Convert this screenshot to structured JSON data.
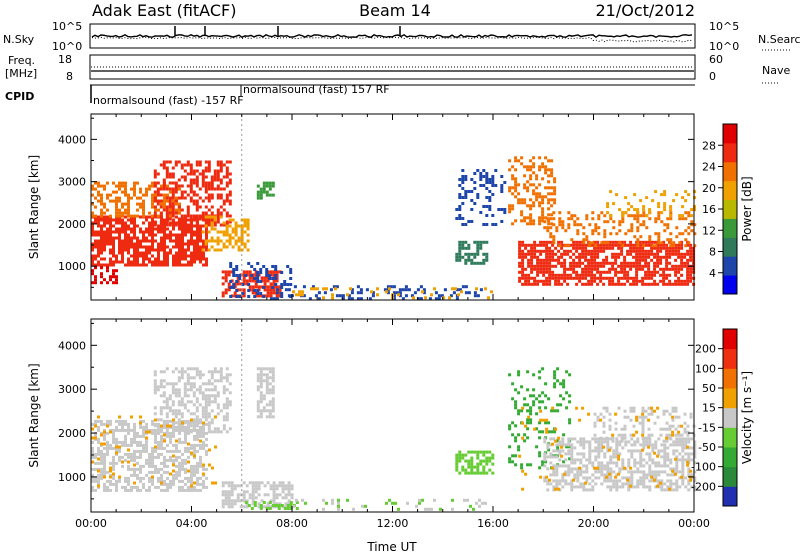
{
  "header": {
    "station": "Adak East (fitACF)",
    "beam": "Beam 14",
    "date": "21/Oct/2012"
  },
  "info_panels": {
    "nsky_label": "N.Sky",
    "nsky_ticks": [
      "10^5",
      "10^0"
    ],
    "nsearch_label": "N.Search",
    "nsearch_ticks": [
      "10^5",
      "10^0"
    ],
    "freq_label_1": "Freq.",
    "freq_label_2": "[MHz]",
    "freq_ticks": [
      "18",
      "8"
    ],
    "nave_label": "Nave",
    "nave_ticks": [
      "60",
      "0"
    ],
    "cpid_label": "CPID",
    "cpid_entries": [
      "normalsound (fast) -157 RF",
      "normalsound (fast) 157 RF"
    ]
  },
  "chart_data": [
    {
      "type": "heatmap",
      "panel": "power",
      "ylabel": "Slant Range [km]",
      "ylim": [
        200,
        4600
      ],
      "yticks": [
        1000,
        2000,
        3000,
        4000
      ],
      "xlim_hours": [
        0,
        24
      ],
      "xticks": [
        "00:00",
        "04:00",
        "08:00",
        "12:00",
        "16:00",
        "20:00",
        "00:00"
      ],
      "colorbar": {
        "label": "Power [dB]",
        "ticks": [
          28,
          24,
          20,
          16,
          12,
          8,
          4
        ],
        "range": [
          0,
          32
        ],
        "colors": [
          "#0000ee",
          "#1e46aa",
          "#2e7a5a",
          "#3a9a3a",
          "#b8b800",
          "#f0a000",
          "#f07000",
          "#ee2a10",
          "#e00000"
        ]
      },
      "regions": [
        {
          "t": [
            0.0,
            4.6
          ],
          "r": [
            1000,
            2200
          ],
          "color": "#ee2a10",
          "density": 0.75
        },
        {
          "t": [
            0.0,
            3.5
          ],
          "r": [
            2200,
            3000
          ],
          "color": "#f07000",
          "density": 0.45
        },
        {
          "t": [
            2.5,
            5.5
          ],
          "r": [
            2000,
            3500
          ],
          "color": "#ee2a10",
          "density": 0.5
        },
        {
          "t": [
            0.0,
            1.0
          ],
          "r": [
            600,
            1000
          ],
          "color": "#e00000",
          "density": 0.5
        },
        {
          "t": [
            4.4,
            6.2
          ],
          "r": [
            1400,
            2200
          ],
          "color": "#f0a000",
          "density": 0.5
        },
        {
          "t": [
            5.2,
            7.5
          ],
          "r": [
            300,
            900
          ],
          "color": "#ee2a10",
          "density": 0.65
        },
        {
          "t": [
            5.5,
            8.0
          ],
          "r": [
            300,
            1100
          ],
          "color": "#1e46aa",
          "density": 0.25
        },
        {
          "t": [
            6.6,
            7.2
          ],
          "r": [
            2600,
            3000
          ],
          "color": "#3a9a3a",
          "density": 0.7
        },
        {
          "t": [
            7.0,
            15.5
          ],
          "r": [
            250,
            550
          ],
          "color": "#1e46aa",
          "density": 0.3
        },
        {
          "t": [
            8.0,
            16.0
          ],
          "r": [
            250,
            500
          ],
          "color": "#f0a000",
          "density": 0.12
        },
        {
          "t": [
            14.5,
            15.8
          ],
          "r": [
            1100,
            1600
          ],
          "color": "#2e7a5a",
          "density": 0.55
        },
        {
          "t": [
            14.5,
            16.5
          ],
          "r": [
            2000,
            3300
          ],
          "color": "#1e46aa",
          "density": 0.25
        },
        {
          "t": [
            16.6,
            18.5
          ],
          "r": [
            2000,
            3600
          ],
          "color": "#f07000",
          "density": 0.4
        },
        {
          "t": [
            17.0,
            24.0
          ],
          "r": [
            600,
            1600
          ],
          "color": "#ee2a10",
          "density": 0.7
        },
        {
          "t": [
            18.0,
            24.0
          ],
          "r": [
            1500,
            2300
          ],
          "color": "#f07000",
          "density": 0.3
        },
        {
          "t": [
            20.5,
            24.0
          ],
          "r": [
            2200,
            2800
          ],
          "color": "#f0a000",
          "density": 0.25
        }
      ]
    },
    {
      "type": "heatmap",
      "panel": "velocity",
      "ylabel": "Slant Range [km]",
      "xlabel": "Time UT",
      "ylim": [
        200,
        4600
      ],
      "yticks": [
        1000,
        2000,
        3000,
        4000
      ],
      "xlim_hours": [
        0,
        24
      ],
      "xticks": [
        "00:00",
        "04:00",
        "08:00",
        "12:00",
        "16:00",
        "20:00",
        "00:00"
      ],
      "colorbar": {
        "label": "Velocity [m s⁻¹]",
        "ticks": [
          200,
          100,
          50,
          15,
          -15,
          -50,
          -100,
          -200
        ],
        "range": [
          -250,
          250
        ],
        "colors": [
          "#2030b0",
          "#2a8a3a",
          "#33aa33",
          "#66cc33",
          "#c8c8c8",
          "#f0a000",
          "#f07000",
          "#ee3010",
          "#e00000"
        ]
      },
      "regions": [
        {
          "t": [
            0.0,
            4.6
          ],
          "r": [
            700,
            2300
          ],
          "color": "#c8c8c8",
          "density": 0.55
        },
        {
          "t": [
            2.5,
            5.5
          ],
          "r": [
            2000,
            3500
          ],
          "color": "#c8c8c8",
          "density": 0.45
        },
        {
          "t": [
            0.0,
            5.0
          ],
          "r": [
            800,
            2400
          ],
          "color": "#f0a000",
          "density": 0.07
        },
        {
          "t": [
            5.2,
            8.0
          ],
          "r": [
            300,
            900
          ],
          "color": "#c8c8c8",
          "density": 0.55
        },
        {
          "t": [
            6.0,
            8.5
          ],
          "r": [
            250,
            450
          ],
          "color": "#66cc33",
          "density": 0.35
        },
        {
          "t": [
            6.6,
            7.2
          ],
          "r": [
            2400,
            3500
          ],
          "color": "#c8c8c8",
          "density": 0.6
        },
        {
          "t": [
            8.0,
            16.0
          ],
          "r": [
            250,
            500
          ],
          "color": "#c8c8c8",
          "density": 0.12
        },
        {
          "t": [
            8.0,
            16.0
          ],
          "r": [
            250,
            500
          ],
          "color": "#66cc33",
          "density": 0.1
        },
        {
          "t": [
            14.5,
            16.0
          ],
          "r": [
            1100,
            1600
          ],
          "color": "#66cc33",
          "density": 0.55
        },
        {
          "t": [
            16.6,
            19.0
          ],
          "r": [
            1200,
            3500
          ],
          "color": "#33aa33",
          "density": 0.2
        },
        {
          "t": [
            18.0,
            24.0
          ],
          "r": [
            700,
            1900
          ],
          "color": "#c8c8c8",
          "density": 0.55
        },
        {
          "t": [
            20.0,
            24.0
          ],
          "r": [
            1800,
            2600
          ],
          "color": "#c8c8c8",
          "density": 0.25
        },
        {
          "t": [
            17.0,
            24.0
          ],
          "r": [
            700,
            2600
          ],
          "color": "#f0a000",
          "density": 0.05
        }
      ]
    }
  ]
}
